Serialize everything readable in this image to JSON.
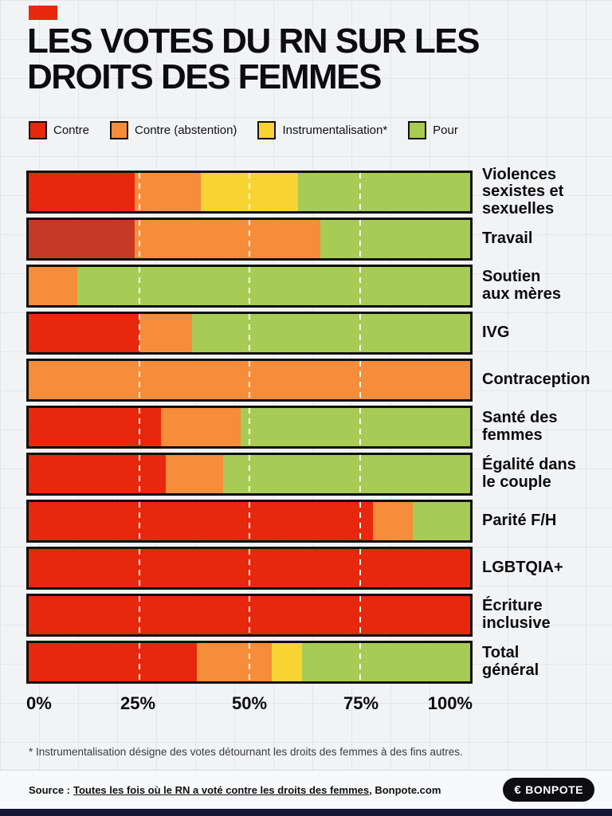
{
  "title_lines": [
    "LES VOTES DU RN SUR LES",
    "DROITS DES FEMMES"
  ],
  "legend": [
    {
      "label": "Contre",
      "color": "#e7280d"
    },
    {
      "label": "Contre (abstention)",
      "color": "#f68d3a"
    },
    {
      "label": "Instrumentalisation*",
      "color": "#f7d431"
    },
    {
      "label": "Pour",
      "color": "#a7cb55"
    }
  ],
  "chart_data": {
    "type": "bar",
    "orientation": "horizontal",
    "stacked": true,
    "title": "Les votes du RN sur les droits des femmes",
    "unit": "%",
    "xlim": [
      0,
      100
    ],
    "x_ticks": [
      "0%",
      "25%",
      "50%",
      "75%",
      "100%"
    ],
    "x_tick_positions": [
      0,
      25,
      50,
      75,
      100
    ],
    "gridline_positions": [
      25,
      50,
      75
    ],
    "categories": [
      "Violences\nsexistes et\nsexuelles",
      "Travail",
      "Soutien\naux mères",
      "IVG",
      "Contraception",
      "Santé des\nfemmes",
      "Égalité dans\nle couple",
      "Parité F/H",
      "LGBTQIA+",
      "Écriture\ninclusive",
      "Total\ngénéral"
    ],
    "series": [
      {
        "name": "Contre",
        "color": "#e7280d",
        "values": [
          24,
          24,
          0,
          25,
          0,
          30,
          31,
          78,
          100,
          100,
          38
        ]
      },
      {
        "name": "Contre (abstention)",
        "color": "#f68d3a",
        "values": [
          15,
          42,
          11,
          12,
          100,
          18,
          13,
          9,
          0,
          0,
          17
        ]
      },
      {
        "name": "Instrumentalisation*",
        "color": "#f7d431",
        "values": [
          22,
          0,
          0,
          0,
          0,
          0,
          0,
          0,
          0,
          0,
          7
        ]
      },
      {
        "name": "Pour",
        "color": "#a7cb55",
        "values": [
          39,
          34,
          89,
          63,
          0,
          52,
          56,
          13,
          0,
          0,
          38
        ]
      }
    ],
    "segment_color_overrides": [
      {
        "category_index": 1,
        "series": "Contre",
        "color": "#c43a24"
      }
    ]
  },
  "footnote": "* Instrumentalisation désigne des votes détournant les droits des femmes à des fins autres.",
  "footer": {
    "source_label": "Source :",
    "source_link": "Toutes les fois où le RN a voté contre les droits des femmes",
    "source_suffix": ", Bonpote.com",
    "logo_icon": "€",
    "logo_text": "BONPOTE"
  },
  "colors": {
    "background": "#f2f3f5",
    "grid": "#e4e6eb",
    "bar_border": "#101010",
    "accent_red": "#e7280d",
    "bottom_strip": "#141735"
  }
}
